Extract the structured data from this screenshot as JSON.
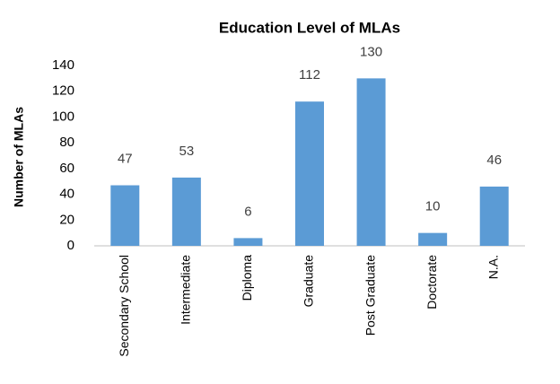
{
  "chart_data": {
    "type": "bar",
    "title": "Education Level of MLAs",
    "y_label": "Number of MLAs",
    "categories": [
      "Secondary School",
      "Intermediate",
      "Diploma",
      "Graduate",
      "Post Graduate",
      "Doctorate",
      "N.A."
    ],
    "values": [
      47,
      53,
      6,
      112,
      130,
      10,
      46
    ],
    "color": "#5b9bd5",
    "ylim": [
      0,
      140
    ],
    "yticks": [
      0,
      20,
      40,
      60,
      80,
      100,
      120,
      140
    ],
    "grid": false
  }
}
